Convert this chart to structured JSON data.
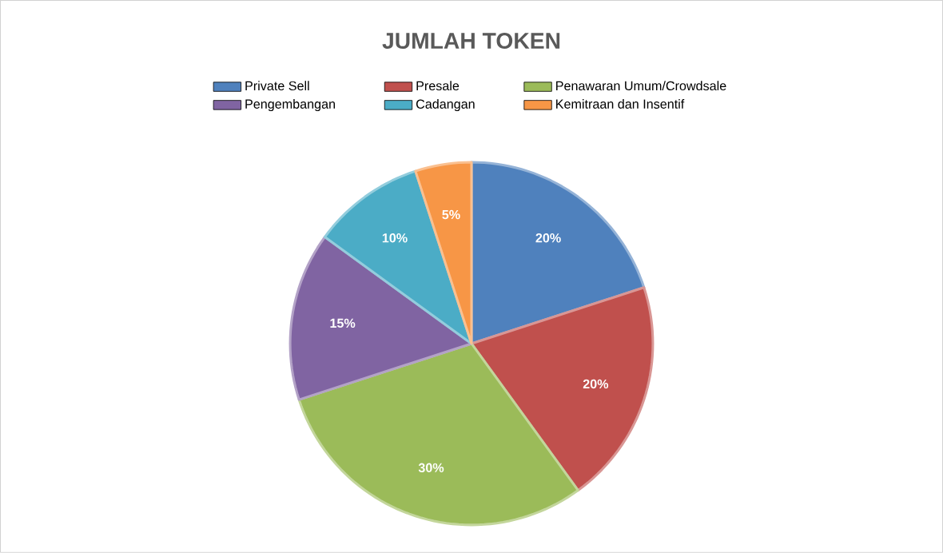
{
  "chart_data": {
    "type": "pie",
    "title": "JUMLAH TOKEN",
    "categories": [
      "Private Sell",
      "Presale",
      "Penawaran Umum/Crowdsale",
      "Pengembangan",
      "Cadangan",
      "Kemitraan dan Insentif"
    ],
    "values": [
      20,
      20,
      30,
      15,
      10,
      5
    ],
    "colors": [
      "#4f81bd",
      "#c0504d",
      "#9bbb59",
      "#8064a2",
      "#4bacc6",
      "#f79646"
    ],
    "value_labels": [
      "20%",
      "20%",
      "30%",
      "15%",
      "10%",
      "5%"
    ],
    "legend": "top"
  }
}
